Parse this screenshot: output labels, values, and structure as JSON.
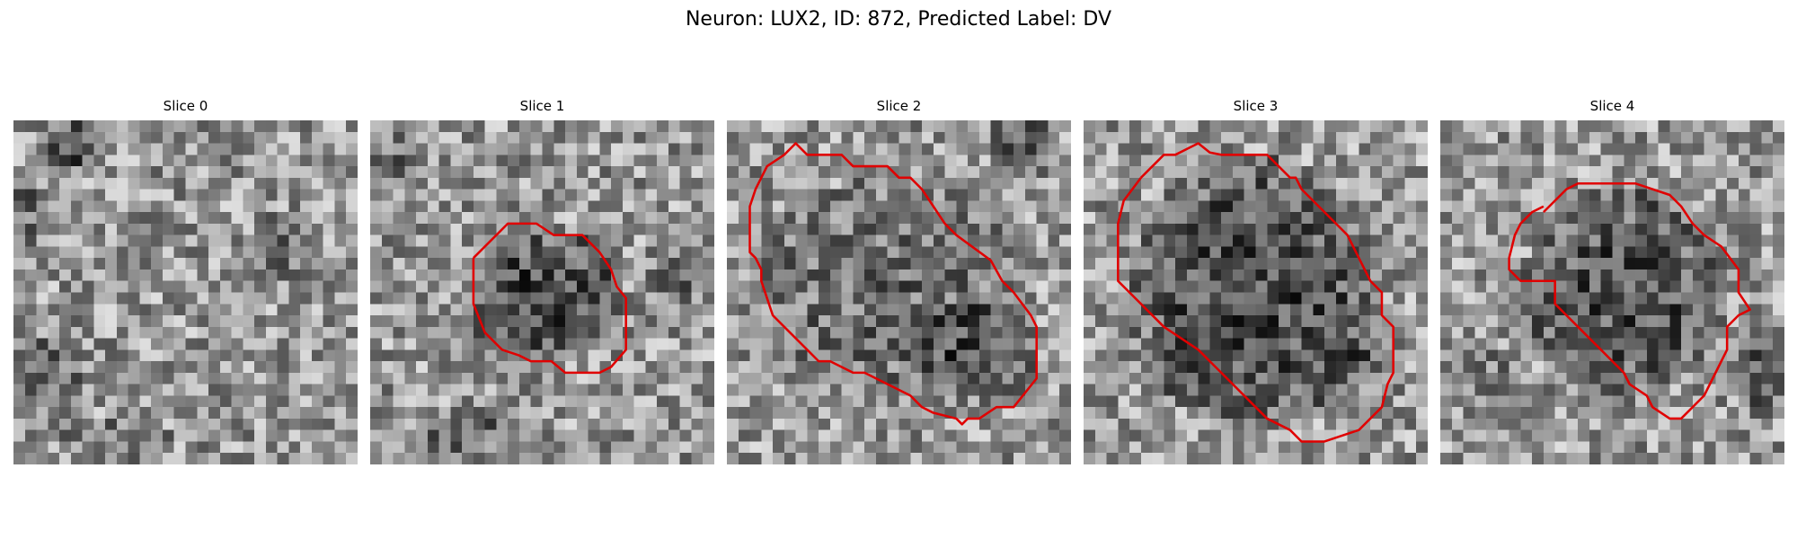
{
  "figure": {
    "title": "Neuron: LUX2, ID: 872, Predicted Label: DV"
  },
  "colors": {
    "contour": "#e00000",
    "background": "#ffffff"
  },
  "panels": [
    {
      "title": "Slice 0",
      "has_contour": false
    },
    {
      "title": "Slice 1",
      "has_contour": true
    },
    {
      "title": "Slice 2",
      "has_contour": true
    },
    {
      "title": "Slice 3",
      "has_contour": true
    },
    {
      "title": "Slice 4",
      "has_contour": true
    }
  ]
}
